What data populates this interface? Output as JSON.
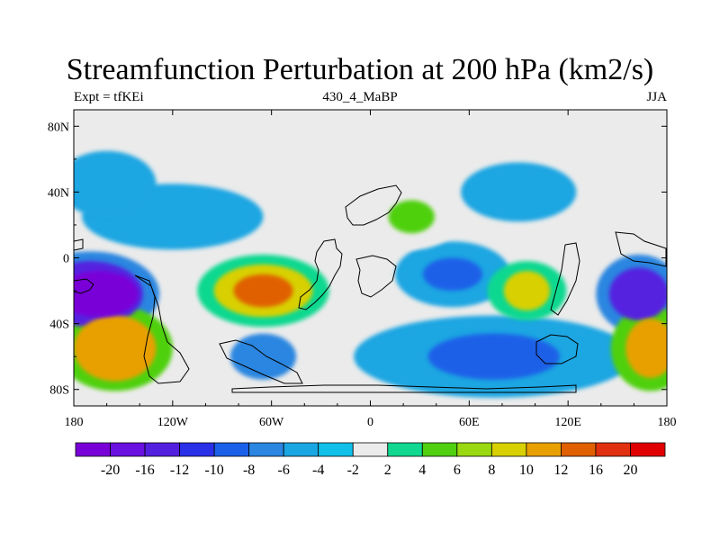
{
  "chart_data": {
    "type": "heatmap",
    "title": "Streamfunction Perturbation at 200 hPa (km2/s)",
    "left_string": "Expt = tfKEi",
    "center_string": "430_4_MaBP",
    "right_string": "JJA",
    "x_ticks": [
      {
        "value": -180,
        "label": "180"
      },
      {
        "value": -120,
        "label": "120W"
      },
      {
        "value": -60,
        "label": "60W"
      },
      {
        "value": 0,
        "label": "0"
      },
      {
        "value": 60,
        "label": "60E"
      },
      {
        "value": 120,
        "label": "120E"
      },
      {
        "value": 180,
        "label": "180"
      }
    ],
    "y_ticks": [
      {
        "value": 80,
        "label": "80N"
      },
      {
        "value": 40,
        "label": "40N"
      },
      {
        "value": 0,
        "label": "0"
      },
      {
        "value": -40,
        "label": "40S"
      },
      {
        "value": -80,
        "label": "80S"
      }
    ],
    "xlim": [
      -180,
      180
    ],
    "ylim": [
      -90,
      90
    ],
    "colorbar": {
      "levels": [
        "-20",
        "-16",
        "-12",
        "-10",
        "-8",
        "-6",
        "-4",
        "-2",
        "2",
        "4",
        "6",
        "8",
        "10",
        "12",
        "16",
        "20"
      ],
      "colors": [
        "#7a00d8",
        "#6a10e0",
        "#5420e0",
        "#2a30e8",
        "#1a60e8",
        "#2a86e0",
        "#1aa6e2",
        "#10c0e8",
        "#ebebeb",
        "#10d890",
        "#50d010",
        "#9ad810",
        "#d8d000",
        "#e8a000",
        "#e06000",
        "#e03010",
        "#e00000"
      ]
    },
    "fields": [
      {
        "lon": -165,
        "lat": -22,
        "level": -20,
        "rx": 24,
        "ry": 14
      },
      {
        "lon": -170,
        "lat": -22,
        "level": -12,
        "rx": 32,
        "ry": 20
      },
      {
        "lon": -170,
        "lat": -22,
        "level": -6,
        "rx": 42,
        "ry": 26
      },
      {
        "lon": 163,
        "lat": -22,
        "level": -12,
        "rx": 18,
        "ry": 16
      },
      {
        "lon": 163,
        "lat": -22,
        "level": -6,
        "rx": 26,
        "ry": 24
      },
      {
        "lon": -155,
        "lat": -55,
        "level": 12,
        "rx": 25,
        "ry": 20
      },
      {
        "lon": -155,
        "lat": -55,
        "level": 6,
        "rx": 35,
        "ry": 26
      },
      {
        "lon": 170,
        "lat": -55,
        "level": 12,
        "rx": 15,
        "ry": 18
      },
      {
        "lon": 170,
        "lat": -55,
        "level": 6,
        "rx": 24,
        "ry": 26
      },
      {
        "lon": -65,
        "lat": -20,
        "level": 16,
        "rx": 18,
        "ry": 10
      },
      {
        "lon": -65,
        "lat": -20,
        "level": 10,
        "rx": 30,
        "ry": 16
      },
      {
        "lon": -65,
        "lat": -20,
        "level": 4,
        "rx": 40,
        "ry": 22
      },
      {
        "lon": 95,
        "lat": -20,
        "level": 10,
        "rx": 14,
        "ry": 12
      },
      {
        "lon": 95,
        "lat": -20,
        "level": 4,
        "rx": 24,
        "ry": 18
      },
      {
        "lon": 50,
        "lat": -10,
        "level": -8,
        "rx": 18,
        "ry": 10
      },
      {
        "lon": 50,
        "lat": -10,
        "level": -4,
        "rx": 35,
        "ry": 20
      },
      {
        "lon": 75,
        "lat": -60,
        "level": -8,
        "rx": 40,
        "ry": 14
      },
      {
        "lon": 75,
        "lat": -60,
        "level": -4,
        "rx": 85,
        "ry": 25
      },
      {
        "lon": 90,
        "lat": 40,
        "level": -4,
        "rx": 35,
        "ry": 18
      },
      {
        "lon": 25,
        "lat": 25,
        "level": 6,
        "rx": 14,
        "ry": 10
      },
      {
        "lon": 25,
        "lat": 25,
        "level": 2,
        "rx": 30,
        "ry": 20
      },
      {
        "lon": -120,
        "lat": 25,
        "level": -4,
        "rx": 55,
        "ry": 20
      },
      {
        "lon": -160,
        "lat": 45,
        "level": -4,
        "rx": 30,
        "ry": 20
      },
      {
        "lon": -40,
        "lat": 55,
        "level": 2,
        "rx": 40,
        "ry": 12
      },
      {
        "lon": -65,
        "lat": -60,
        "level": -6,
        "rx": 20,
        "ry": 14
      }
    ]
  }
}
